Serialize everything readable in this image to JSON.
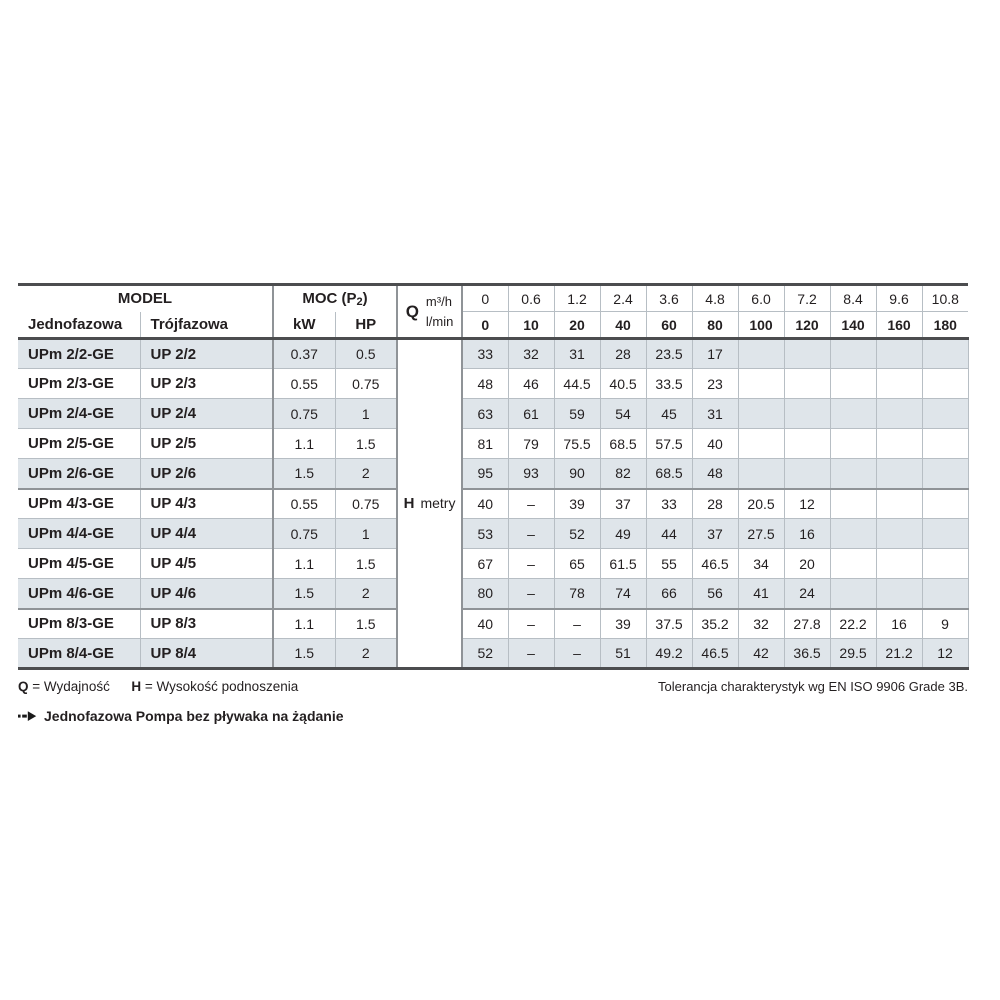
{
  "header": {
    "model": "MODEL",
    "jednofazowa": "Jednofazowa",
    "trojfazowa": "Trójfazowa",
    "moc_prefix": "MOC (P",
    "moc_sub": "2",
    "moc_suffix": ")",
    "kw": "kW",
    "hp": "HP",
    "q": "Q",
    "m3h": "m³/h",
    "lmin": "l/min"
  },
  "flow": {
    "m3h": [
      "0",
      "0.6",
      "1.2",
      "2.4",
      "3.6",
      "4.8",
      "6.0",
      "7.2",
      "8.4",
      "9.6",
      "10.8"
    ],
    "lmin": [
      "0",
      "10",
      "20",
      "40",
      "60",
      "80",
      "100",
      "120",
      "140",
      "160",
      "180"
    ]
  },
  "h_column": {
    "label": "H",
    "unit": "metry"
  },
  "rows": [
    {
      "mono": "UPm 2/2-GE",
      "tri": "UP 2/2",
      "kw": "0.37",
      "hp": "0.5",
      "values": [
        "33",
        "32",
        "31",
        "28",
        "23.5",
        "17",
        "",
        "",
        "",
        "",
        ""
      ]
    },
    {
      "mono": "UPm 2/3-GE",
      "tri": "UP 2/3",
      "kw": "0.55",
      "hp": "0.75",
      "values": [
        "48",
        "46",
        "44.5",
        "40.5",
        "33.5",
        "23",
        "",
        "",
        "",
        "",
        ""
      ]
    },
    {
      "mono": "UPm 2/4-GE",
      "tri": "UP 2/4",
      "kw": "0.75",
      "hp": "1",
      "values": [
        "63",
        "61",
        "59",
        "54",
        "45",
        "31",
        "",
        "",
        "",
        "",
        ""
      ]
    },
    {
      "mono": "UPm 2/5-GE",
      "tri": "UP 2/5",
      "kw": "1.1",
      "hp": "1.5",
      "values": [
        "81",
        "79",
        "75.5",
        "68.5",
        "57.5",
        "40",
        "",
        "",
        "",
        "",
        ""
      ]
    },
    {
      "mono": "UPm 2/6-GE",
      "tri": "UP 2/6",
      "kw": "1.5",
      "hp": "2",
      "values": [
        "95",
        "93",
        "90",
        "82",
        "68.5",
        "48",
        "",
        "",
        "",
        "",
        ""
      ]
    },
    {
      "mono": "UPm 4/3-GE",
      "tri": "UP 4/3",
      "kw": "0.55",
      "hp": "0.75",
      "values": [
        "40",
        "–",
        "39",
        "37",
        "33",
        "28",
        "20.5",
        "12",
        "",
        "",
        ""
      ]
    },
    {
      "mono": "UPm 4/4-GE",
      "tri": "UP 4/4",
      "kw": "0.75",
      "hp": "1",
      "values": [
        "53",
        "–",
        "52",
        "49",
        "44",
        "37",
        "27.5",
        "16",
        "",
        "",
        ""
      ]
    },
    {
      "mono": "UPm 4/5-GE",
      "tri": "UP 4/5",
      "kw": "1.1",
      "hp": "1.5",
      "values": [
        "67",
        "–",
        "65",
        "61.5",
        "55",
        "46.5",
        "34",
        "20",
        "",
        "",
        ""
      ]
    },
    {
      "mono": "UPm 4/6-GE",
      "tri": "UP 4/6",
      "kw": "1.5",
      "hp": "2",
      "values": [
        "80",
        "–",
        "78",
        "74",
        "66",
        "56",
        "41",
        "24",
        "",
        "",
        ""
      ]
    },
    {
      "mono": "UPm 8/3-GE",
      "tri": "UP 8/3",
      "kw": "1.1",
      "hp": "1.5",
      "values": [
        "40",
        "–",
        "–",
        "39",
        "37.5",
        "35.2",
        "32",
        "27.8",
        "22.2",
        "16",
        "9"
      ]
    },
    {
      "mono": "UPm 8/4-GE",
      "tri": "UP 8/4",
      "kw": "1.5",
      "hp": "2",
      "values": [
        "52",
        "–",
        "–",
        "51",
        "49.2",
        "46.5",
        "42",
        "36.5",
        "29.5",
        "21.2",
        "12"
      ]
    }
  ],
  "footer": {
    "q_sym": "Q",
    "q_def": "= Wydajność",
    "h_sym": "H",
    "h_def": "= Wysokość podnoszenia",
    "tolerance": "Tolerancja charakterystyk wg EN ISO 9906 Grade 3B.",
    "note": "Jednofazowa Pompa bez pływaka na żądanie"
  },
  "colors": {
    "stripe": "#dfe5ea",
    "border_dark": "#4c4d4f",
    "border_mid": "#8f9397",
    "border_light": "#b7bec4",
    "text": "#231f20"
  }
}
